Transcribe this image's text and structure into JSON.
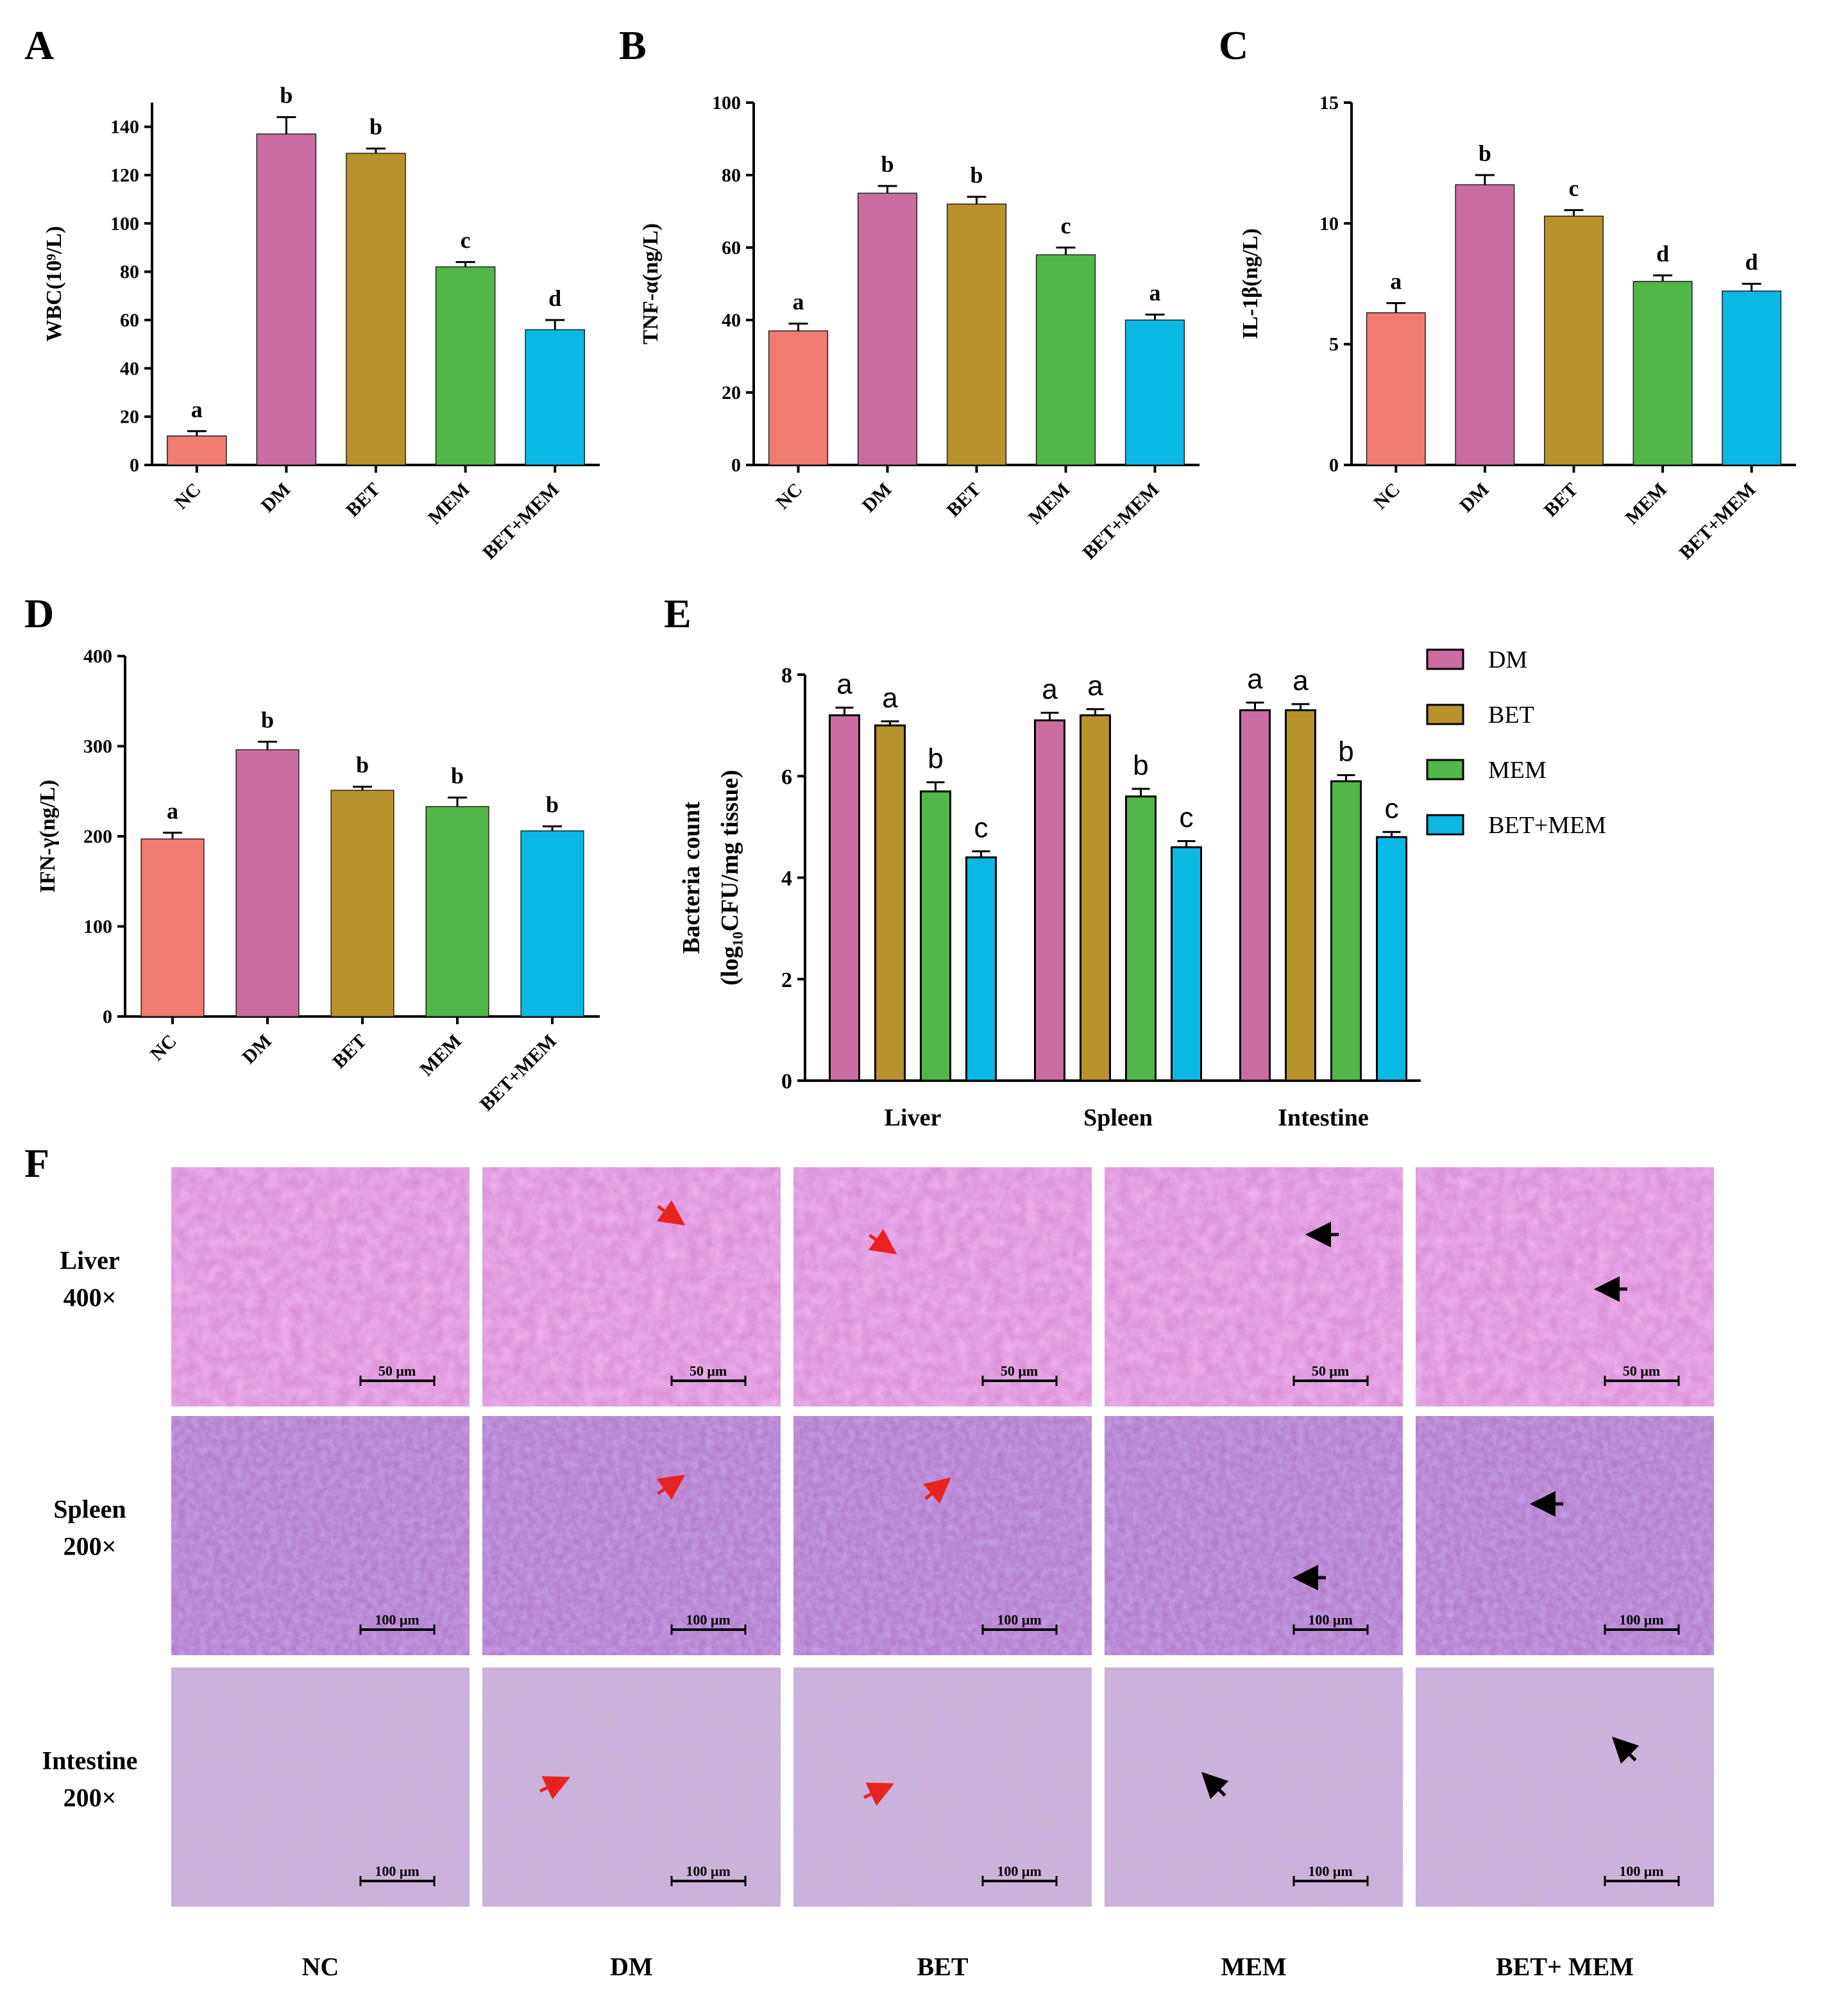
{
  "panels": {
    "A": "A",
    "B": "B",
    "C": "C",
    "D": "D",
    "E": "E",
    "F": "F"
  },
  "colors": {
    "NC": "#F07B70",
    "DM": "#CB6CA0",
    "BET": "#B8922A",
    "MEM": "#50B748",
    "BET+MEM": "#0AB9E3"
  },
  "chart_data": [
    {
      "id": "A",
      "type": "bar",
      "ylabel": "WBC(10⁹/L)",
      "categories": [
        "NC",
        "DM",
        "BET",
        "MEM",
        "BET+MEM"
      ],
      "values": [
        12,
        137,
        129,
        82,
        56
      ],
      "errors": [
        2,
        7,
        2,
        2,
        4
      ],
      "letters": [
        "a",
        "b",
        "b",
        "c",
        "d"
      ],
      "ylim": [
        0,
        150
      ],
      "yticks": [
        0,
        20,
        40,
        60,
        80,
        100,
        120,
        140
      ],
      "ytick_labels": [
        "0",
        "20",
        "40",
        "60",
        "80",
        "100",
        "120",
        "140"
      ]
    },
    {
      "id": "B",
      "type": "bar",
      "ylabel": "TNF-α(ng/L)",
      "categories": [
        "NC",
        "DM",
        "BET",
        "MEM",
        "BET+MEM"
      ],
      "values": [
        37,
        75,
        72,
        58,
        40
      ],
      "errors": [
        2,
        2,
        2,
        2,
        1.5
      ],
      "letters": [
        "a",
        "b",
        "b",
        "c",
        "a"
      ],
      "ylim": [
        0,
        100
      ],
      "yticks": [
        0,
        20,
        40,
        60,
        80,
        100
      ],
      "ytick_labels": [
        "0",
        "20",
        "40",
        "60",
        "80",
        "100"
      ]
    },
    {
      "id": "C",
      "type": "bar",
      "ylabel": "IL-1β(ng/L)",
      "categories": [
        "NC",
        "DM",
        "BET",
        "MEM",
        "BET+MEM"
      ],
      "values": [
        6.3,
        11.6,
        10.3,
        7.6,
        7.2
      ],
      "errors": [
        0.4,
        0.4,
        0.25,
        0.25,
        0.3
      ],
      "letters": [
        "a",
        "b",
        "c",
        "d",
        "d"
      ],
      "ylim": [
        0,
        15
      ],
      "yticks": [
        0,
        5,
        10,
        15
      ],
      "ytick_labels": [
        "0",
        "5",
        "10",
        "15"
      ]
    },
    {
      "id": "D",
      "type": "bar",
      "ylabel": "IFN-γ(ng/L)",
      "categories": [
        "NC",
        "DM",
        "BET",
        "MEM",
        "BET+MEM"
      ],
      "values": [
        197,
        296,
        251,
        233,
        206
      ],
      "errors": [
        7,
        9,
        4,
        10,
        5
      ],
      "letters": [
        "a",
        "b",
        "b",
        "b",
        "b"
      ],
      "ylim": [
        0,
        400
      ],
      "yticks": [
        0,
        100,
        200,
        300,
        400
      ],
      "ytick_labels": [
        "0",
        "100",
        "200",
        "300",
        "400"
      ]
    },
    {
      "id": "E",
      "type": "bar",
      "ylabel_line1": "Bacteria count",
      "ylabel_line2": "(log₁₀CFU/mg tissue)",
      "categories": [
        "Liver",
        "Spleen",
        "Intestine"
      ],
      "series": [
        {
          "name": "DM",
          "values": [
            7.2,
            7.1,
            7.3
          ],
          "errors": [
            0.15,
            0.15,
            0.15
          ],
          "letters": [
            "a",
            "a",
            "a"
          ]
        },
        {
          "name": "BET",
          "values": [
            7.0,
            7.2,
            7.3
          ],
          "errors": [
            0.08,
            0.12,
            0.12
          ],
          "letters": [
            "a",
            "a",
            "a"
          ]
        },
        {
          "name": "MEM",
          "values": [
            5.7,
            5.6,
            5.9
          ],
          "errors": [
            0.18,
            0.15,
            0.12
          ],
          "letters": [
            "b",
            "b",
            "b"
          ]
        },
        {
          "name": "BET+MEM",
          "values": [
            4.4,
            4.6,
            4.8
          ],
          "errors": [
            0.12,
            0.12,
            0.1
          ],
          "letters": [
            "c",
            "c",
            "c"
          ]
        }
      ],
      "ylim": [
        0,
        8
      ],
      "yticks": [
        0,
        2,
        4,
        6,
        8
      ],
      "ytick_labels": [
        "0",
        "2",
        "4",
        "6",
        "8"
      ],
      "legend_position": "right"
    }
  ],
  "histology": {
    "rows": [
      {
        "line1": "Liver",
        "line2": "400×",
        "scale": "50 μm"
      },
      {
        "line1": "Spleen",
        "line2": "200×",
        "scale": "100 μm"
      },
      {
        "line1": "Intestine",
        "line2": "200×",
        "scale": "100 μm"
      }
    ],
    "columns": [
      "NC",
      "DM",
      "BET",
      "MEM",
      "BET+ MEM"
    ]
  }
}
